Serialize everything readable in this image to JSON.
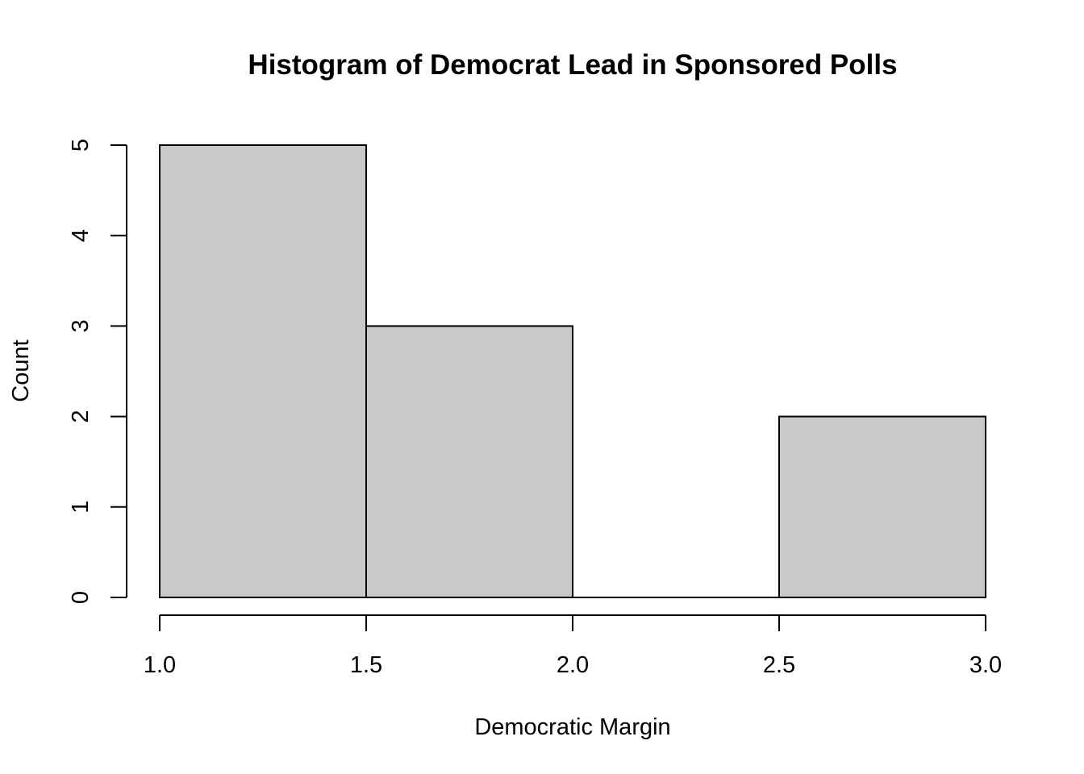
{
  "chart_data": {
    "type": "bar",
    "title": "Histogram of Democrat Lead in Sponsored Polls",
    "xlabel": "Democratic Margin",
    "ylabel": "Count",
    "bins": [
      {
        "start": 1.0,
        "end": 1.5,
        "count": 5
      },
      {
        "start": 1.5,
        "end": 2.0,
        "count": 3
      },
      {
        "start": 2.0,
        "end": 2.5,
        "count": 0
      },
      {
        "start": 2.5,
        "end": 3.0,
        "count": 2
      }
    ],
    "xlim": [
      1.0,
      3.0
    ],
    "ylim": [
      0,
      5
    ],
    "x_ticks": [
      {
        "value": 1.0,
        "label": "1.0"
      },
      {
        "value": 1.5,
        "label": "1.5"
      },
      {
        "value": 2.0,
        "label": "2.0"
      },
      {
        "value": 2.5,
        "label": "2.5"
      },
      {
        "value": 3.0,
        "label": "3.0"
      }
    ],
    "y_ticks": [
      {
        "value": 0,
        "label": "0"
      },
      {
        "value": 1,
        "label": "1"
      },
      {
        "value": 2,
        "label": "2"
      },
      {
        "value": 3,
        "label": "3"
      },
      {
        "value": 4,
        "label": "4"
      },
      {
        "value": 5,
        "label": "5"
      }
    ],
    "bar_color": "#c9c9c9",
    "grid": false,
    "legend": "none"
  }
}
